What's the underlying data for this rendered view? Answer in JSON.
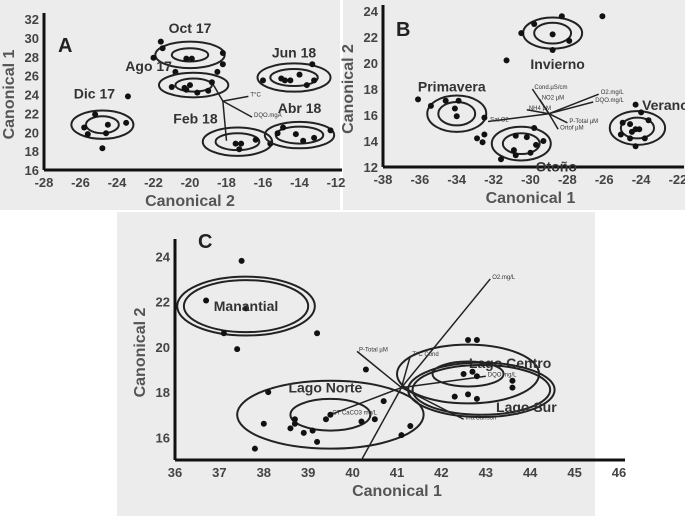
{
  "chart_data": [
    {
      "id": "A",
      "type": "scatter",
      "panel_label": "A",
      "xlabel": "Canonical 2",
      "ylabel": "Canonical 1",
      "xlim": [
        -28,
        -12
      ],
      "ylim": [
        16,
        32
      ],
      "xticks": [
        -28,
        -26,
        -24,
        -22,
        -20,
        -18,
        -16,
        -14,
        -12
      ],
      "yticks": [
        16,
        18,
        20,
        22,
        24,
        26,
        28,
        30,
        32
      ],
      "groups": [
        {
          "name": "Dic 17",
          "center": [
            -24.8,
            20.8
          ],
          "inner": [
            0.9,
            0.9
          ],
          "outer": [
            1.7,
            1.5
          ],
          "points": [
            [
              -25.8,
              20.5
            ],
            [
              -25.6,
              19.8
            ],
            [
              -25.2,
              21.9
            ],
            [
              -24.5,
              20.8
            ],
            [
              -24.6,
              19.9
            ],
            [
              -23.5,
              21
            ],
            [
              -24.8,
              18.3
            ]
          ]
        },
        {
          "name": "Oct 17",
          "center": [
            -20,
            28.2
          ],
          "inner": [
            1,
            0.7
          ],
          "outer": [
            1.9,
            1.4
          ],
          "points": [
            [
              -21.6,
              29.6
            ],
            [
              -21.5,
              28.9
            ],
            [
              -22,
              27.9
            ],
            [
              -20.2,
              27.8
            ],
            [
              -19.9,
              27.8
            ],
            [
              -18.2,
              28.4
            ],
            [
              -18.2,
              27.2
            ],
            [
              -20.8,
              26.4
            ],
            [
              -18.5,
              26.4
            ]
          ]
        },
        {
          "name": "Ago 17",
          "center": [
            -19.8,
            25
          ],
          "inner": [
            1,
            0.7
          ],
          "outer": [
            1.9,
            1.3
          ],
          "points": [
            [
              -21,
              24.8
            ],
            [
              -20.3,
              24.7
            ],
            [
              -20,
              25
            ],
            [
              -20.2,
              24.5
            ],
            [
              -19.6,
              24.2
            ],
            [
              -19,
              24.4
            ],
            [
              -18.8,
              25.3
            ]
          ]
        },
        {
          "name": "Jun 18",
          "center": [
            -14.3,
            25.8
          ],
          "inner": [
            1.3,
            0.9
          ],
          "outer": [
            2,
            1.5
          ],
          "points": [
            [
              -16,
              25.5
            ],
            [
              -15,
              25.7
            ],
            [
              -14.8,
              25.5
            ],
            [
              -14.5,
              25.5
            ],
            [
              -14,
              26.1
            ],
            [
              -13.6,
              25
            ],
            [
              -13.2,
              25.5
            ],
            [
              -13.3,
              27.2
            ]
          ]
        },
        {
          "name": "Feb 18",
          "center": [
            -17.4,
            19
          ],
          "inner": [
            1.2,
            0.9
          ],
          "outer": [
            1.9,
            1.5
          ],
          "points": [
            [
              -17.5,
              18.8
            ],
            [
              -17.2,
              18.8
            ],
            [
              -17.3,
              18.2
            ],
            [
              -16.4,
              19.2
            ],
            [
              -15.6,
              18.8
            ]
          ]
        },
        {
          "name": "Abr 18",
          "center": [
            -14,
            19.7
          ],
          "inner": [
            1.3,
            0.9
          ],
          "outer": [
            1.9,
            1.4
          ],
          "points": [
            [
              -15.2,
              19.9
            ],
            [
              -14.9,
              20.5
            ],
            [
              -14.2,
              19.8
            ],
            [
              -13.8,
              19.1
            ],
            [
              -13.2,
              19.4
            ],
            [
              -12.3,
              20.2
            ]
          ]
        }
      ],
      "extra_points": [
        [
          -23.4,
          23.8
        ]
      ],
      "vector_origin": [
        -18.2,
        23.3
      ],
      "vectors": [
        {
          "label": "",
          "end": [
            -18.8,
            25.3
          ]
        },
        {
          "label": "",
          "end": [
            -18,
            19.1
          ]
        },
        {
          "label": "DQO.mgA",
          "end": [
            -16.6,
            21.6
          ]
        },
        {
          "label": "T°C",
          "end": [
            -16.8,
            23.8
          ]
        }
      ]
    },
    {
      "id": "B",
      "type": "scatter",
      "panel_label": "B",
      "xlabel": "Canonical 1",
      "ylabel": "Canonical 2",
      "xlim": [
        -38,
        -22
      ],
      "ylim": [
        12,
        24
      ],
      "xticks": [
        -38,
        -36,
        -34,
        -32,
        -30,
        -28,
        -26,
        -24,
        -22
      ],
      "yticks": [
        12,
        14,
        16,
        18,
        20,
        22,
        24
      ],
      "groups": [
        {
          "name": "Invierno",
          "center": [
            -28.8,
            22.3
          ],
          "inner": [
            1,
            0.8
          ],
          "outer": [
            1.6,
            1.2
          ],
          "points": [
            [
              -30.5,
              22.3
            ],
            [
              -29.8,
              23
            ],
            [
              -28.8,
              22.2
            ],
            [
              -28.3,
              23.6
            ],
            [
              -27.9,
              21.7
            ],
            [
              -28.8,
              21
            ]
          ]
        },
        {
          "name": "Primavera",
          "center": [
            -34,
            16.1
          ],
          "inner": [
            1,
            0.9
          ],
          "outer": [
            1.6,
            1.4
          ],
          "points": [
            [
              -35.4,
              16.7
            ],
            [
              -34.6,
              17.1
            ],
            [
              -33.9,
              17.1
            ],
            [
              -34.1,
              16.5
            ],
            [
              -34,
              15.9
            ],
            [
              -32.5,
              15.8
            ]
          ]
        },
        {
          "name": "Otoño",
          "center": [
            -30.5,
            13.8
          ],
          "inner": [
            1,
            0.8
          ],
          "outer": [
            1.6,
            1.3
          ],
          "points": [
            [
              -31.6,
              12.6
            ],
            [
              -30.8,
              14.4
            ],
            [
              -30.2,
              14.3
            ],
            [
              -29.8,
              15
            ],
            [
              -30.9,
              13.3
            ],
            [
              -30.8,
              12.9
            ],
            [
              -30,
              13.1
            ],
            [
              -29.7,
              13.7
            ],
            [
              -29.3,
              14
            ]
          ]
        },
        {
          "name": "Verano",
          "center": [
            -24.2,
            15
          ],
          "inner": [
            0.9,
            0.8
          ],
          "outer": [
            1.5,
            1.3
          ],
          "points": [
            [
              -25,
              15.4
            ],
            [
              -24.6,
              15.3
            ],
            [
              -24.3,
              14.9
            ],
            [
              -24.1,
              14.9
            ],
            [
              -24.5,
              14.7
            ],
            [
              -24.6,
              14.2
            ],
            [
              -25.1,
              14.5
            ],
            [
              -23.6,
              15.6
            ],
            [
              -23.8,
              14.2
            ],
            [
              -24.3,
              13.6
            ],
            [
              -24,
              16.2
            ],
            [
              -24.3,
              16.8
            ]
          ]
        }
      ],
      "extra_points": [
        [
          -36.1,
          17.2
        ],
        [
          -32.9,
          14.2
        ],
        [
          -32.5,
          14.5
        ],
        [
          -32.6,
          13.9
        ],
        [
          -26.1,
          23.6
        ],
        [
          -31.3,
          20.2
        ]
      ],
      "vector_origin": [
        -29,
        16.1
      ],
      "vectors": [
        {
          "label": "Cond.µS/cm",
          "end": [
            -29.9,
            18
          ]
        },
        {
          "label": "NO2 µM",
          "end": [
            -29.5,
            17.2
          ]
        },
        {
          "label": "O2.mg/L",
          "end": [
            -26.3,
            17.6
          ]
        },
        {
          "label": "DQO.mg/L",
          "end": [
            -26.6,
            17
          ]
        },
        {
          "label": "P-Total µM",
          "end": [
            -28,
            15.4
          ]
        },
        {
          "label": "Ortof µM",
          "end": [
            -28.5,
            14.9
          ]
        },
        {
          "label": "Sat.O2",
          "end": [
            -32.3,
            15.5
          ]
        },
        {
          "label": "NH4 µM",
          "end": [
            -30.2,
            16.4
          ]
        }
      ]
    },
    {
      "id": "C",
      "type": "scatter",
      "panel_label": "C",
      "xlabel": "Canonical 1",
      "ylabel": "Canonical 2",
      "xlim": [
        36,
        46
      ],
      "ylim": [
        15,
        24.5
      ],
      "xticks": [
        36,
        37,
        38,
        39,
        40,
        41,
        42,
        43,
        44,
        45,
        46
      ],
      "yticks": [
        16,
        18,
        20,
        22,
        24
      ],
      "groups": [
        {
          "name": "Manantial",
          "center": [
            37.6,
            21.8
          ],
          "inner": [
            1.4,
            1.15
          ],
          "outer": [
            1.55,
            1.3
          ],
          "points": [
            [
              36.7,
              22.05
            ],
            [
              37.6,
              21.7
            ],
            [
              37.1,
              20.6
            ],
            [
              37.4,
              19.9
            ]
          ]
        },
        {
          "name": "Lago Norte",
          "center": [
            39.5,
            17
          ],
          "inner": [
            0.9,
            0.7
          ],
          "outer": [
            2.1,
            1.5
          ],
          "points": [
            [
              38,
              16.6
            ],
            [
              38.7,
              16.8
            ],
            [
              38.7,
              16.6
            ],
            [
              38.6,
              16.4
            ],
            [
              38.9,
              16.2
            ],
            [
              39.1,
              16.3
            ],
            [
              39.2,
              15.8
            ],
            [
              39.4,
              16.8
            ],
            [
              39.5,
              17
            ],
            [
              40.2,
              16.7
            ],
            [
              40.5,
              16.8
            ],
            [
              40.7,
              17.6
            ]
          ]
        },
        {
          "name": "Lago Centro",
          "center": [
            42.6,
            18.8
          ],
          "inner": [
            0.8,
            0.55
          ],
          "outer": [
            1.6,
            1.3
          ],
          "points": [
            [
              42.6,
              20.3
            ],
            [
              42.8,
              20.3
            ],
            [
              42.5,
              18.8
            ],
            [
              42.7,
              18.9
            ],
            [
              42.8,
              18.7
            ]
          ]
        },
        {
          "name": "Lago Sur",
          "center": [
            42.9,
            18.1
          ],
          "inner": [
            1.55,
            1.1
          ],
          "outer": [
            1.65,
            1.2
          ],
          "points": [
            [
              43.6,
              18.5
            ],
            [
              43.6,
              18.2
            ],
            [
              42.3,
              17.8
            ],
            [
              42.6,
              17.9
            ],
            [
              42.8,
              17.7
            ]
          ]
        }
      ],
      "extra_points": [
        [
          37.5,
          23.8
        ],
        [
          39.2,
          20.6
        ],
        [
          37.8,
          15.5
        ],
        [
          38.1,
          18
        ],
        [
          40.3,
          19
        ],
        [
          41.3,
          16.5
        ],
        [
          41.1,
          16.1
        ]
      ],
      "vector_origin": [
        41.1,
        18.2
      ],
      "vectors": [
        {
          "label": "O2.mg/L",
          "end": [
            43.1,
            23
          ]
        },
        {
          "label": "P-Total µM",
          "end": [
            40.1,
            19.8
          ]
        },
        {
          "label": "",
          "end": [
            40.2,
            15
          ]
        },
        {
          "label": "Ind.Carlson",
          "end": [
            42.5,
            16.8
          ]
        },
        {
          "label": "CT CaCO3 mg/L",
          "end": [
            39.5,
            17
          ]
        },
        {
          "label": "DQO mg/L",
          "end": [
            43,
            18.7
          ]
        },
        {
          "label": "T°C Cond",
          "end": [
            41.3,
            19.6
          ]
        }
      ]
    }
  ]
}
